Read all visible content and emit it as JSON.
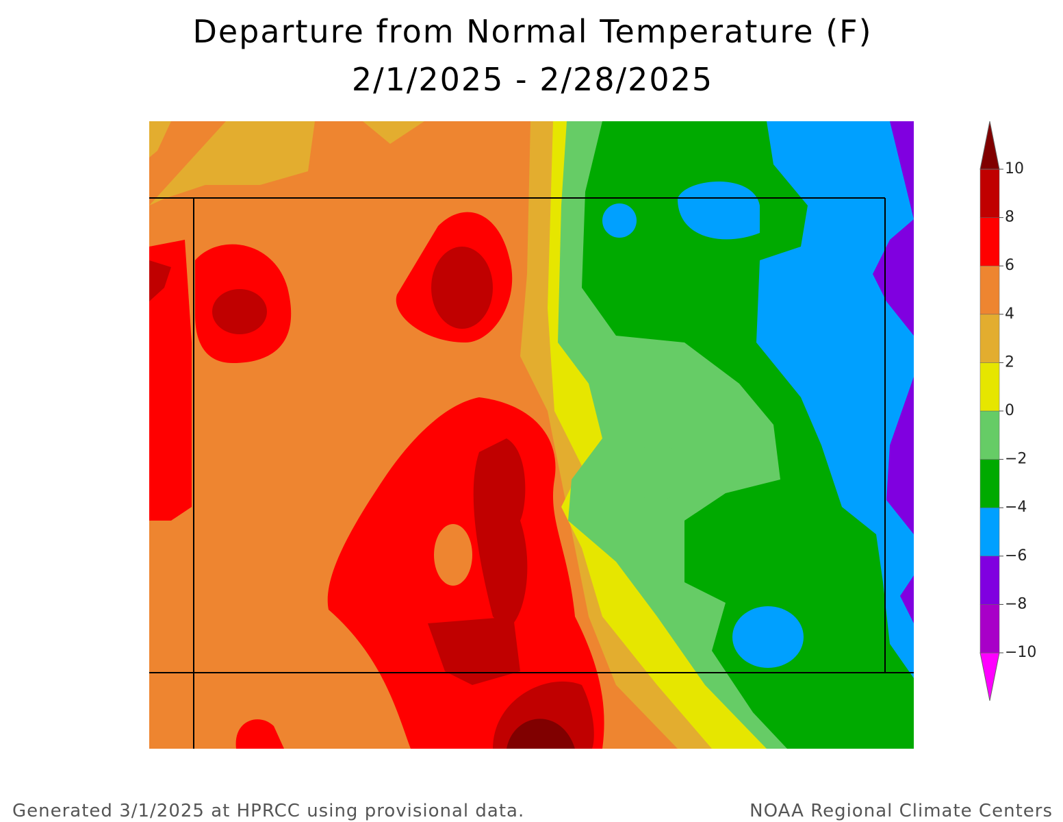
{
  "title": [
    "Departure from Normal Temperature (F)",
    "2/1/2025 - 2/28/2025"
  ],
  "legend": {
    "ticks": [
      {
        "value": -10,
        "label": "−10"
      },
      {
        "value": -8,
        "label": "−8"
      },
      {
        "value": -6,
        "label": "−6"
      },
      {
        "value": -4,
        "label": "−4"
      },
      {
        "value": -2,
        "label": "−2"
      },
      0,
      2,
      4,
      6,
      8,
      10
    ],
    "colors": [
      "#ff00ff",
      "#a800c8",
      "#8000e0",
      "#00a0ff",
      "#00aa00",
      "#66cc66",
      "#e6e600",
      "#e3ad2f",
      "#ee8530",
      "#ff0000",
      "#c00000",
      "#800000"
    ]
  },
  "footer": {
    "left": "Generated 3/1/2025 at HPRCC using provisional data.",
    "right": "NOAA Regional Climate Centers"
  }
}
